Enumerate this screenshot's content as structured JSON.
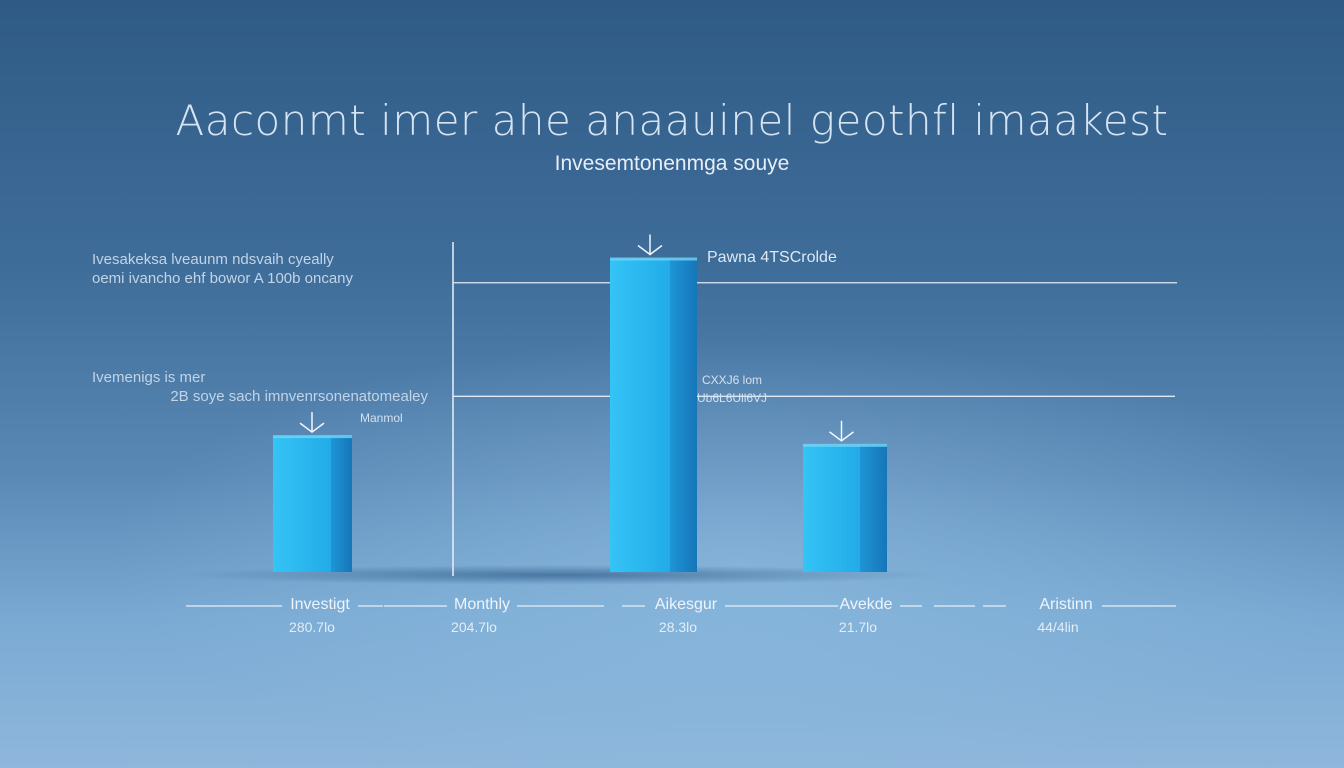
{
  "chart_data": {
    "type": "bar",
    "title": "Aaconmt imer ahe anaauinel geothfl imaakest",
    "subtitle": "Invesemtonenmga souye",
    "categories": [
      "Investigt",
      "Monthly",
      "Aikesgur",
      "Avekde",
      "Aristinn"
    ],
    "value_labels": [
      "280.7lo",
      "204.7lo",
      "28.3lo",
      "21.7lo",
      "44/4lin"
    ],
    "bars": [
      {
        "category": "Investigt",
        "value": 140
      },
      {
        "category": "Aikesgur",
        "value": 323
      },
      {
        "category": "Avekde",
        "value": 131
      }
    ],
    "ylim": [
      0,
      340
    ],
    "gridlines": [
      298,
      181
    ],
    "grid": true,
    "legend": "none",
    "colors": {
      "bar_front": "#2ab8f0",
      "bar_side": "#1b8fd0",
      "bar_top": "#5fd0f8",
      "axis": "#e8f0f8"
    },
    "annotations": {
      "peak": "Pawna 4TSCrolde",
      "mid_top": "CXXJ6 lom",
      "mid_bottom": "Ub6L6Ull6VJ",
      "left_bar": "Manmol"
    },
    "notes": {
      "top_left_line1": "Ivesakeksa lveaunm ndsvaih cyeally",
      "top_left_line2": "oemi ivancho ehf bowor A 100b oncany",
      "mid_left_line1": "Ivemenigs is mer",
      "mid_left_line2": "2B soye sach imnvenrsonenatomealey"
    }
  }
}
